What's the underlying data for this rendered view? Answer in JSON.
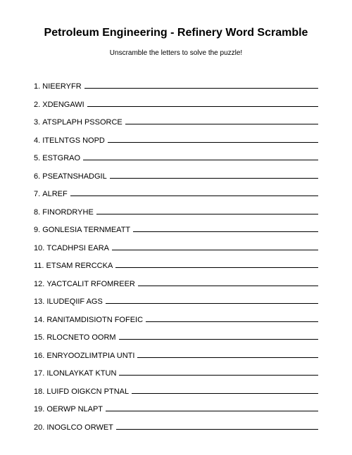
{
  "title": "Petroleum Engineering - Refinery Word Scramble",
  "subtitle": "Unscramble the letters to solve the puzzle!",
  "items": [
    {
      "num": "1.",
      "text": "NIEERYFR"
    },
    {
      "num": "2.",
      "text": "XDENGAWI"
    },
    {
      "num": "3.",
      "text": "ATSPLAPH PSSORCE"
    },
    {
      "num": "4.",
      "text": "ITELNTGS NOPD"
    },
    {
      "num": "5.",
      "text": "ESTGRAO"
    },
    {
      "num": "6.",
      "text": "PSEATNSHADGIL"
    },
    {
      "num": "7.",
      "text": "ALREF"
    },
    {
      "num": "8.",
      "text": "FINORDRYHE"
    },
    {
      "num": "9.",
      "text": "GONLESIA TERNMEATT"
    },
    {
      "num": "10.",
      "text": "TCADHPSI EARA"
    },
    {
      "num": "11.",
      "text": "ETSAM RERCCKA"
    },
    {
      "num": "12.",
      "text": "YACTCALIT RFOMREER"
    },
    {
      "num": "13.",
      "text": "ILUDEQIIF AGS"
    },
    {
      "num": "14.",
      "text": "RANITAMDISIOTN FOFEIC"
    },
    {
      "num": "15.",
      "text": "RLOCNETO OORM"
    },
    {
      "num": "16.",
      "text": "ENRYOOZLIMTPIA UNTI"
    },
    {
      "num": "17.",
      "text": "ILONLAYKAT KTUN"
    },
    {
      "num": "18.",
      "text": "LUIFD OIGKCN PTNAL"
    },
    {
      "num": "19.",
      "text": "OERWP NLAPT"
    },
    {
      "num": "20.",
      "text": "INOGLCO ORWET"
    }
  ]
}
